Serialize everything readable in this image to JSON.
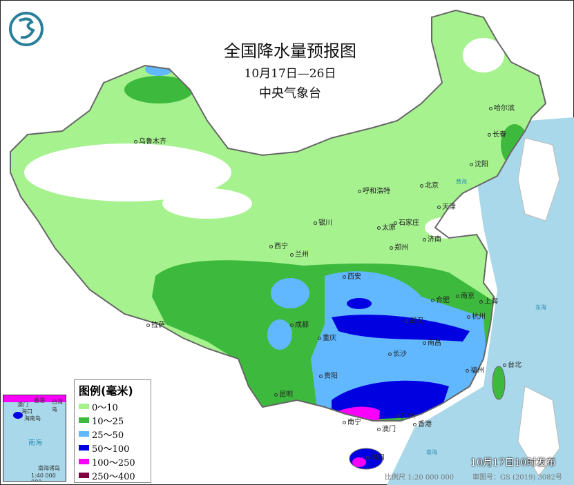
{
  "header": {
    "title": "全国降水量预报图",
    "date_range": "10月17日—26日",
    "organization": "中央气象台"
  },
  "logo": {
    "name": "cma-logo-icon",
    "color": "#2a7f9a"
  },
  "cities": [
    "乌鲁木齐",
    "哈尔滨",
    "长春",
    "沈阳",
    "北京",
    "呼和浩特",
    "天津",
    "石家庄",
    "银川",
    "太原",
    "济南",
    "西宁",
    "兰州",
    "郑州",
    "西安",
    "合肥",
    "南京",
    "上海",
    "拉萨",
    "成都",
    "武汉",
    "杭州",
    "重庆",
    "南昌",
    "长沙",
    "福州",
    "台北",
    "贵阳",
    "昆明",
    "南宁",
    "广州",
    "香港",
    "澳门",
    "海口"
  ],
  "legend": {
    "title": "图例(毫米)",
    "items": [
      {
        "label": "0～10",
        "color": "#a6f28f"
      },
      {
        "label": "10～25",
        "color": "#3dba3d"
      },
      {
        "label": "25～50",
        "color": "#61b8ff"
      },
      {
        "label": "50～100",
        "color": "#0000e1"
      },
      {
        "label": "100～250",
        "color": "#fa00fa"
      },
      {
        "label": "250～400",
        "color": "#800040"
      }
    ]
  },
  "inset": {
    "labels": [
      "澳门",
      "香港",
      "台湾岛",
      "海口",
      "海南岛",
      "南海",
      "南海诸岛"
    ],
    "scale": "1:40 000 000"
  },
  "sea_labels": [
    "黄海",
    "东海",
    "南海"
  ],
  "footer": {
    "issued": "10月17日10时发布",
    "scale": "比例尺 1:20 000 000",
    "review_number": "审图号：GS (2019) 3082号"
  },
  "colors": {
    "sea": "#a9d8ea",
    "border": "#666666"
  }
}
